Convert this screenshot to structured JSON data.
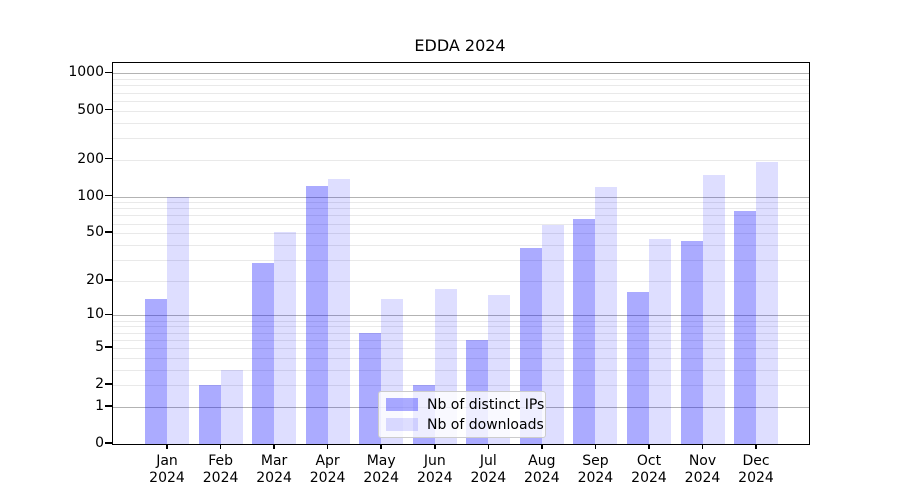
{
  "title": "EDDA 2024",
  "chart_data": {
    "type": "bar",
    "title": "EDDA 2024",
    "categories": [
      "Jan",
      "Feb",
      "Mar",
      "Apr",
      "May",
      "Jun",
      "Jul",
      "Aug",
      "Sep",
      "Oct",
      "Nov",
      "Dec"
    ],
    "category_year": "2024",
    "series": [
      {
        "name": "Nb of distinct IPs",
        "color_hex": "#0000ff",
        "opacity": 0.33,
        "rendered_color": "#aaaaff",
        "values": [
          14,
          2,
          28,
          122,
          7,
          2,
          6,
          38,
          66,
          16,
          43,
          76
        ]
      },
      {
        "name": "Nb of downloads",
        "color_hex": "#0000ff",
        "opacity": 0.13,
        "rendered_color": "#dedeff",
        "values": [
          100,
          3,
          51,
          140,
          14,
          17,
          15,
          58,
          120,
          45,
          150,
          190
        ]
      }
    ],
    "yscale": "log10(1+v)",
    "ylim": [
      0,
      1250
    ],
    "yticks": [
      {
        "label": "1000",
        "value": 1000
      },
      {
        "label": "500",
        "value": 500
      },
      {
        "label": "200",
        "value": 200
      },
      {
        "label": "100",
        "value": 100
      },
      {
        "label": "50",
        "value": 50
      },
      {
        "label": "20",
        "value": 20
      },
      {
        "label": "10",
        "value": 10
      },
      {
        "label": "5",
        "value": 5
      },
      {
        "label": "2",
        "value": 2
      },
      {
        "label": "1",
        "value": 1
      },
      {
        "label": "0",
        "value": 0
      }
    ],
    "major_grid_values": [
      1,
      10,
      100,
      1000
    ],
    "minor_grid_values": [
      2,
      3,
      4,
      5,
      6,
      7,
      8,
      9,
      20,
      30,
      40,
      50,
      60,
      70,
      80,
      90,
      200,
      300,
      400,
      500,
      600,
      700,
      800,
      900
    ],
    "grid": true,
    "legend_position": "lower center"
  },
  "colors": {
    "background": "#ffffff",
    "axis_frame": "#000000",
    "major_grid": "#b3b3b3",
    "minor_grid": "#e9e9e9",
    "legend_border": "#cccccc"
  }
}
